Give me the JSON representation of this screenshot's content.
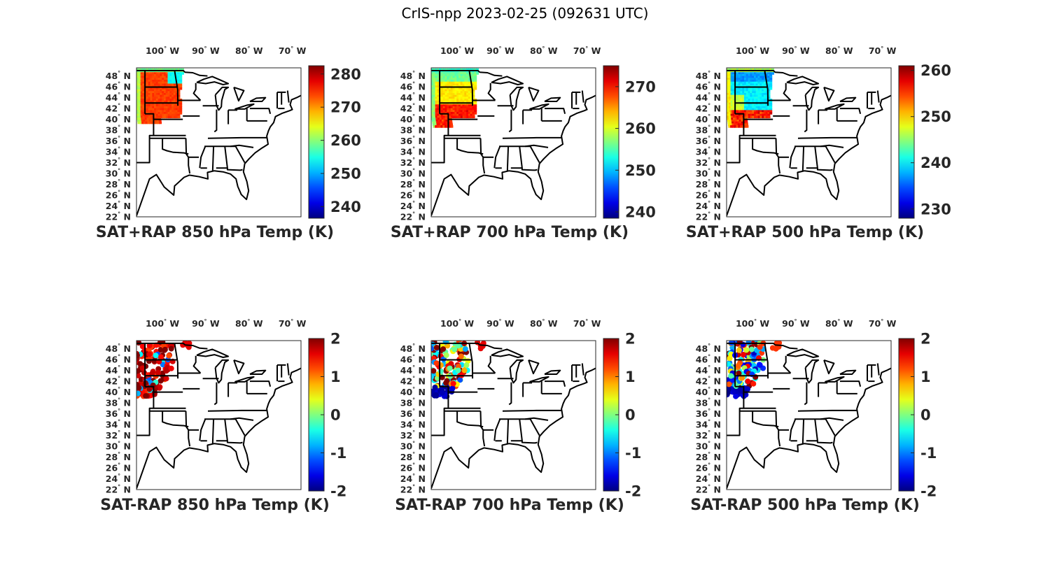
{
  "figure_title": "CrIS-npp 2023-02-25 (092631 UTC)",
  "map": {
    "lon_ticks": [
      "100",
      "90",
      "80",
      "70"
    ],
    "lon_hemisphere": "W",
    "lat_ticks": [
      "48",
      "46",
      "44",
      "42",
      "40",
      "38",
      "36",
      "34",
      "32",
      "30",
      "28",
      "26",
      "24",
      "22"
    ],
    "lat_hemisphere": "N",
    "degree_symbol": "°",
    "extent": {
      "lon_min": -106,
      "lon_max": -68,
      "lat_min": 22,
      "lat_max": 49.5
    }
  },
  "panels": [
    {
      "id": "sat-rap-sum-850",
      "title": "SAT+RAP 850 hPa Temp (K)",
      "field": "sum",
      "colorbar": {
        "min": 236.5,
        "max": 282.5,
        "ticks": [
          "280",
          "270",
          "260",
          "250",
          "240"
        ],
        "tick_values": [
          280,
          270,
          260,
          250,
          240
        ]
      },
      "typical_value": 274,
      "edge_value": 262,
      "cold_value": 254
    },
    {
      "id": "sat-rap-sum-700",
      "title": "SAT+RAP 700 hPa Temp (K)",
      "field": "sum",
      "colorbar": {
        "min": 238.5,
        "max": 275.0,
        "ticks": [
          "270",
          "260",
          "250",
          "240"
        ],
        "tick_values": [
          270,
          260,
          250,
          240
        ]
      },
      "typical_value": 262,
      "edge_value": 257,
      "cold_value": 252
    },
    {
      "id": "sat-rap-sum-500",
      "title": "SAT+RAP 500 hPa Temp (K)",
      "field": "sum",
      "colorbar": {
        "min": 228.0,
        "max": 261.0,
        "ticks": [
          "260",
          "250",
          "240",
          "230"
        ],
        "tick_values": [
          260,
          250,
          240,
          230
        ]
      },
      "typical_value": 240,
      "edge_value": 249,
      "cold_value": 236
    },
    {
      "id": "sat-rap-diff-850",
      "title": "SAT-RAP 850 hPa Temp (K)",
      "field": "difference",
      "colorbar": {
        "min": -2,
        "max": 2,
        "ticks": [
          "2",
          "1",
          "0",
          "-1",
          "-2"
        ],
        "tick_values": [
          2,
          1,
          0,
          -1,
          -2
        ]
      },
      "typical_value": 1.6
    },
    {
      "id": "sat-rap-diff-700",
      "title": "SAT-RAP 700 hPa Temp (K)",
      "field": "difference",
      "colorbar": {
        "min": -2,
        "max": 2,
        "ticks": [
          "2",
          "1",
          "0",
          "-1",
          "-2"
        ],
        "tick_values": [
          2,
          1,
          0,
          -1,
          -2
        ]
      },
      "typical_value": 1.0
    },
    {
      "id": "sat-rap-diff-500",
      "title": "SAT-RAP 500 hPa Temp (K)",
      "field": "difference",
      "colorbar": {
        "min": -2,
        "max": 2,
        "ticks": [
          "2",
          "1",
          "0",
          "-1",
          "-2"
        ],
        "tick_values": [
          2,
          1,
          0,
          -1,
          -2
        ]
      },
      "typical_value": 0.2
    }
  ]
}
